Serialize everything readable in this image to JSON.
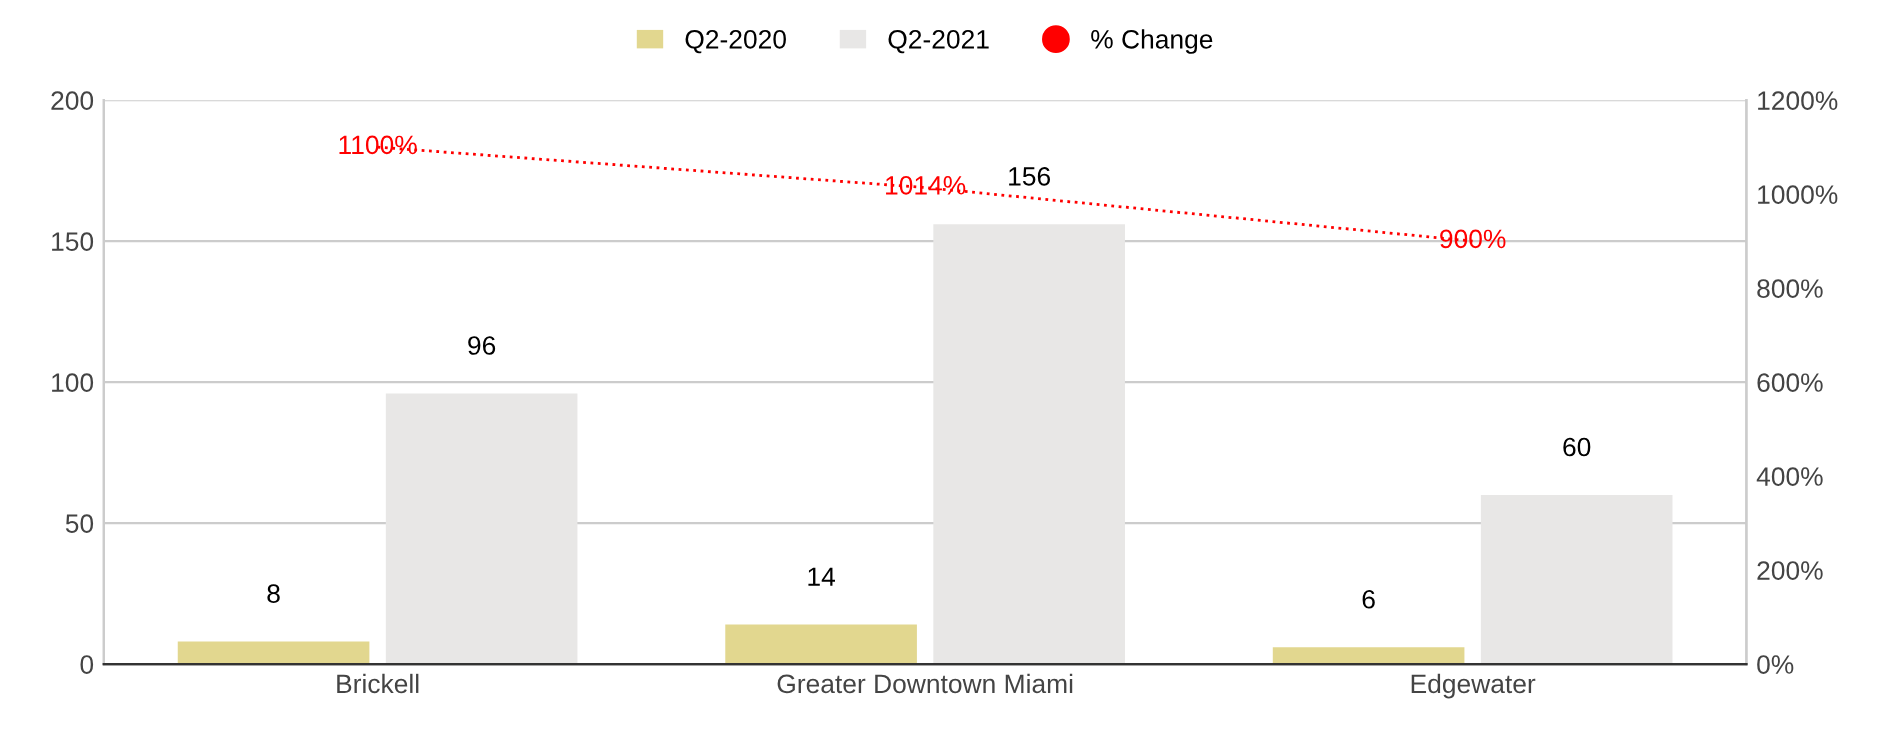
{
  "chart_data": {
    "type": "bar",
    "categories": [
      "Brickell",
      "Greater Downtown Miami",
      "Edgewater"
    ],
    "series": [
      {
        "name": "Q2-2020",
        "color": "#e2d78f",
        "values": [
          8,
          14,
          6
        ],
        "value_labels": [
          "8",
          "14",
          "6"
        ]
      },
      {
        "name": "Q2-2021",
        "color": "#e8e7e6",
        "values": [
          96,
          156,
          60
        ],
        "value_labels": [
          "96",
          "156",
          "60"
        ]
      },
      {
        "name": "% Change",
        "type": "line",
        "axis": "y2",
        "color": "#ff0000",
        "line_style": "dotted",
        "marker": "none",
        "values": [
          1100,
          1014,
          900
        ],
        "value_labels": [
          "1100%",
          "1014%",
          "900%"
        ]
      }
    ],
    "ylim": [
      0,
      200
    ],
    "yticks": [
      0,
      50,
      100,
      150,
      200
    ],
    "y2lim": [
      0,
      1200
    ],
    "y2ticks": [
      {
        "value": 0,
        "label": "0%"
      },
      {
        "value": 200,
        "label": "200%"
      },
      {
        "value": 400,
        "label": "400%"
      },
      {
        "value": 600,
        "label": "600%"
      },
      {
        "value": 800,
        "label": "800%"
      },
      {
        "value": 1000,
        "label": "1000%"
      },
      {
        "value": 1200,
        "label": "1200%"
      }
    ],
    "grid": "y",
    "legend": "top"
  }
}
